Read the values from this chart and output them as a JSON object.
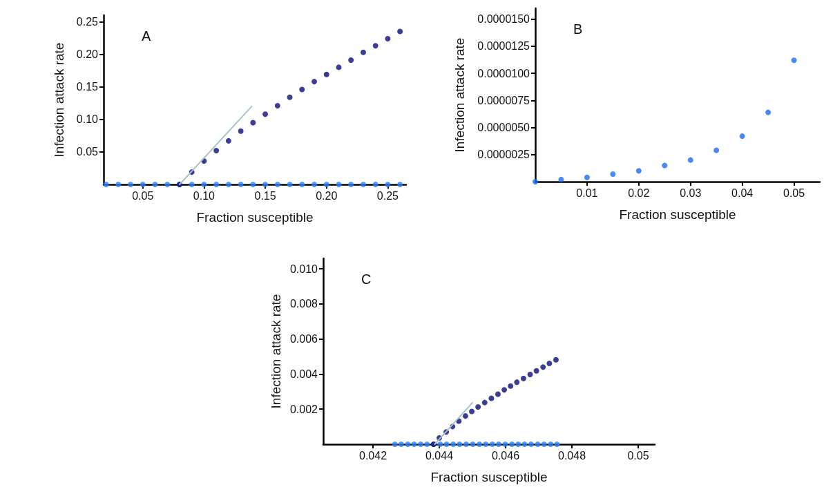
{
  "chart_data": [
    {
      "type": "scatter",
      "annotations": [
        "A"
      ],
      "xlabel": "Fraction susceptible",
      "ylabel": "Infection attack rate",
      "marker": "circle",
      "xlim": [
        0.018,
        0.265
      ],
      "ylim": [
        0,
        0.26
      ],
      "xticks": [
        {
          "value": 0.05,
          "label": "0.05"
        },
        {
          "value": 0.1,
          "label": "0.10"
        },
        {
          "value": 0.15,
          "label": "0.15"
        },
        {
          "value": 0.2,
          "label": "0.20"
        },
        {
          "value": 0.25,
          "label": "0.25"
        }
      ],
      "yticks": [
        {
          "value": 0.05,
          "label": "0.05"
        },
        {
          "value": 0.1,
          "label": "0.10"
        },
        {
          "value": 0.15,
          "label": "0.15"
        },
        {
          "value": 0.2,
          "label": "0.20"
        },
        {
          "value": 0.25,
          "label": "0.25"
        }
      ],
      "series": [
        {
          "color": "#2a7fff",
          "x": [
            0.02,
            0.03,
            0.04,
            0.05,
            0.06,
            0.07,
            0.08,
            0.09,
            0.1,
            0.11,
            0.12,
            0.13,
            0.14,
            0.15,
            0.16,
            0.17,
            0.18,
            0.19,
            0.2,
            0.21,
            0.22,
            0.23,
            0.24,
            0.25,
            0.26
          ],
          "values": [
            0,
            0,
            0,
            0,
            0,
            0,
            0,
            0,
            0,
            0,
            0,
            0,
            0,
            0,
            0,
            0,
            0,
            0,
            0,
            0,
            0,
            0,
            0,
            0,
            0
          ]
        },
        {
          "type": "line",
          "color": "#a8c4c4",
          "marker": "none",
          "x": [
            0.08,
            0.139
          ],
          "values": [
            0,
            0.12
          ]
        },
        {
          "color": "#0c0c78",
          "x": [
            0.08,
            0.09,
            0.1,
            0.11,
            0.12,
            0.13,
            0.14,
            0.15,
            0.16,
            0.17,
            0.18,
            0.19,
            0.2,
            0.21,
            0.22,
            0.23,
            0.24,
            0.25,
            0.26
          ],
          "values": [
            0,
            0.019,
            0.036,
            0.052,
            0.067,
            0.082,
            0.095,
            0.108,
            0.121,
            0.134,
            0.146,
            0.158,
            0.169,
            0.18,
            0.191,
            0.203,
            0.213,
            0.224,
            0.235
          ]
        }
      ]
    },
    {
      "type": "scatter",
      "annotations": [
        "B"
      ],
      "xlabel": "Fraction susceptible",
      "ylabel": "Infection attack rate",
      "marker": "circle",
      "xlim": [
        0,
        0.055
      ],
      "ylim": [
        0,
        1.6e-05
      ],
      "xticks": [
        0.01,
        0.02,
        0.03,
        0.04,
        0.05
      ],
      "yticks": [
        {
          "value": 2.5e-06,
          "label": "0.0000025"
        },
        {
          "value": 5e-06,
          "label": "0.0000050"
        },
        {
          "value": 7.5e-06,
          "label": "0.0000075"
        },
        {
          "value": 1e-05,
          "label": "0.0000100"
        },
        {
          "value": 1.25e-05,
          "label": "0.0000125"
        },
        {
          "value": 1.5e-05,
          "label": "0.0000150"
        }
      ],
      "series": [
        {
          "color": "#1a6cf5",
          "x": [
            0,
            0.005,
            0.01,
            0.015,
            0.02,
            0.025,
            0.03,
            0.035,
            0.04,
            0.045,
            0.05
          ],
          "values": [
            0,
            2e-07,
            4e-07,
            7e-07,
            1e-06,
            1.5e-06,
            2e-06,
            2.9e-06,
            4.2e-06,
            6.4e-06,
            1.12e-05
          ]
        }
      ]
    },
    {
      "type": "scatter",
      "annotations": [
        "C"
      ],
      "xlabel": "Fraction susceptible",
      "ylabel": "Infection attack rate",
      "marker": "circle",
      "xlim": [
        0.0405,
        0.0505
      ],
      "ylim": [
        0,
        0.0106
      ],
      "xticks": [
        0.042,
        0.044,
        0.046,
        0.048,
        0.05
      ],
      "yticks": [
        0.002,
        0.004,
        0.006,
        0.008,
        {
          "value": 0.01,
          "label": "0.010"
        }
      ],
      "series": [
        {
          "color": "#2a7fff",
          "x": [
            0.04266,
            0.04285,
            0.04305,
            0.04324,
            0.04344,
            0.04363,
            0.04383,
            0.04403,
            0.04422,
            0.04442,
            0.04461,
            0.04481,
            0.04501,
            0.04521,
            0.0454,
            0.0456,
            0.04579,
            0.04599,
            0.04619,
            0.04638,
            0.04657,
            0.04677,
            0.04697,
            0.04716,
            0.04736,
            0.04755
          ],
          "values": [
            0,
            0,
            0,
            0,
            0,
            0,
            0,
            0,
            0,
            0,
            0,
            0,
            0,
            0,
            0,
            0,
            0,
            0,
            0,
            0,
            0,
            0,
            0,
            0,
            0,
            0
          ]
        },
        {
          "type": "line",
          "color": "#a8c4c4",
          "marker": "none",
          "x": [
            0.04386,
            0.045
          ],
          "values": [
            0,
            0.00237
          ]
        },
        {
          "color": "#0c0c78",
          "x": [
            0.04383,
            0.044,
            0.04421,
            0.0444,
            0.04459,
            0.04479,
            0.04498,
            0.04517,
            0.04537,
            0.04557,
            0.04577,
            0.04596,
            0.04615,
            0.04634,
            0.04654,
            0.04674,
            0.04693,
            0.04713,
            0.04732,
            0.04752
          ],
          "values": [
            0,
            0.00036,
            0.0007,
            0.00101,
            0.00132,
            0.00161,
            0.00187,
            0.00213,
            0.00238,
            0.00262,
            0.00286,
            0.0031,
            0.00332,
            0.00354,
            0.00375,
            0.00398,
            0.00419,
            0.0044,
            0.00461,
            0.00482
          ]
        }
      ]
    }
  ]
}
